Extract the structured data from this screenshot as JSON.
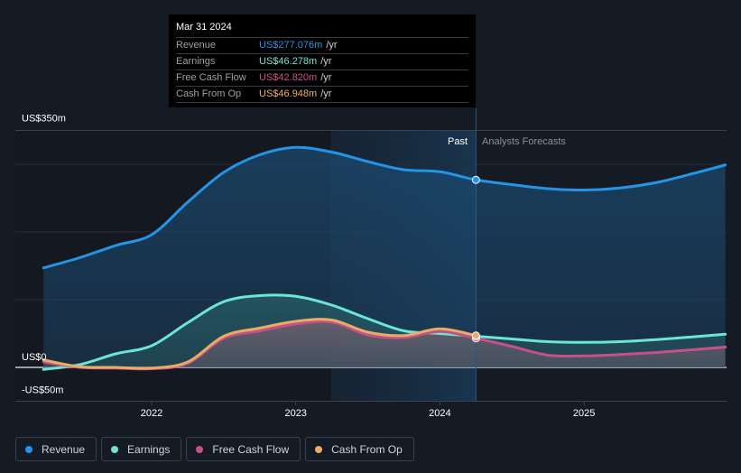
{
  "tooltip": {
    "date": "Mar 31 2024",
    "rows": [
      {
        "label": "Revenue",
        "value": "US$277.076m",
        "unit": "/yr",
        "color": "#2394e6"
      },
      {
        "label": "Earnings",
        "value": "US$46.278m",
        "unit": "/yr",
        "color": "#6ce5d6"
      },
      {
        "label": "Free Cash Flow",
        "value": "US$42.820m",
        "unit": "/yr",
        "color": "#d0518c"
      },
      {
        "label": "Cash From Op",
        "value": "US$46.948m",
        "unit": "/yr",
        "color": "#f0b05c"
      }
    ]
  },
  "labels": {
    "past": "Past",
    "forecast": "Analysts Forecasts"
  },
  "legend": [
    {
      "label": "Revenue",
      "color": "#2394e6"
    },
    {
      "label": "Earnings",
      "color": "#6ce5d6"
    },
    {
      "label": "Free Cash Flow",
      "color": "#c8508a"
    },
    {
      "label": "Cash From Op",
      "color": "#e8ad62"
    }
  ],
  "chart_data": {
    "type": "area",
    "title": "",
    "xlabel": "",
    "ylabel": "",
    "x_ticks": [
      "2022",
      "2023",
      "2024",
      "2025"
    ],
    "x_tick_values": [
      2022,
      2023,
      2024,
      2025
    ],
    "y_tick_labels": [
      "US$350m",
      "US$0",
      "-US$50m"
    ],
    "y_tick_values": [
      350,
      0,
      -50
    ],
    "gridlines_y": [
      350,
      300,
      200,
      100,
      0,
      -50
    ],
    "xlim": [
      2021.25,
      2025.98
    ],
    "ylim": [
      -50,
      350
    ],
    "past_forecast_divider": 2024.25,
    "highlight_start": 2023.24,
    "series": [
      {
        "name": "Revenue",
        "color": "#2394e6",
        "x": [
          2021.25,
          2021.5,
          2021.75,
          2022.0,
          2022.25,
          2022.5,
          2022.75,
          2023.0,
          2023.25,
          2023.5,
          2023.75,
          2024.0,
          2024.25,
          2024.5,
          2024.75,
          2025.0,
          2025.25,
          2025.5,
          2025.75,
          2025.98
        ],
        "y": [
          147,
          162,
          180,
          196,
          244,
          288,
          314,
          325,
          318,
          304,
          292,
          289,
          277,
          270,
          264,
          262,
          265,
          273,
          286,
          299
        ]
      },
      {
        "name": "Earnings",
        "color": "#6ce5d6",
        "x": [
          2021.25,
          2021.5,
          2021.75,
          2022.0,
          2022.25,
          2022.5,
          2022.75,
          2023.0,
          2023.25,
          2023.5,
          2023.75,
          2024.0,
          2024.25,
          2024.5,
          2024.75,
          2025.0,
          2025.25,
          2025.5,
          2025.75,
          2025.98
        ],
        "y": [
          -3,
          4,
          20,
          32,
          66,
          97,
          106,
          105,
          92,
          72,
          54,
          50,
          46,
          42,
          38,
          37,
          38,
          41,
          45,
          49
        ]
      },
      {
        "name": "Free Cash Flow",
        "color": "#c8508a",
        "x": [
          2021.25,
          2021.5,
          2021.75,
          2022.0,
          2022.25,
          2022.5,
          2022.75,
          2023.0,
          2023.25,
          2023.5,
          2023.75,
          2024.0,
          2024.25,
          2024.5,
          2024.75,
          2025.0,
          2025.25,
          2025.5,
          2025.75,
          2025.98
        ],
        "y": [
          8,
          0,
          -1,
          -2,
          6,
          43,
          54,
          64,
          67,
          48,
          44,
          53,
          43,
          31,
          18,
          17,
          19,
          22,
          26,
          30
        ]
      },
      {
        "name": "Cash From Op",
        "color": "#e8ad62",
        "x": [
          2021.25,
          2021.5,
          2021.75,
          2022.0,
          2022.25,
          2022.5,
          2022.75,
          2023.0,
          2023.25,
          2023.5,
          2023.75,
          2024.0,
          2024.25
        ],
        "y": [
          11,
          1,
          0,
          -1,
          8,
          46,
          58,
          68,
          70,
          52,
          47,
          57,
          47
        ]
      }
    ]
  }
}
